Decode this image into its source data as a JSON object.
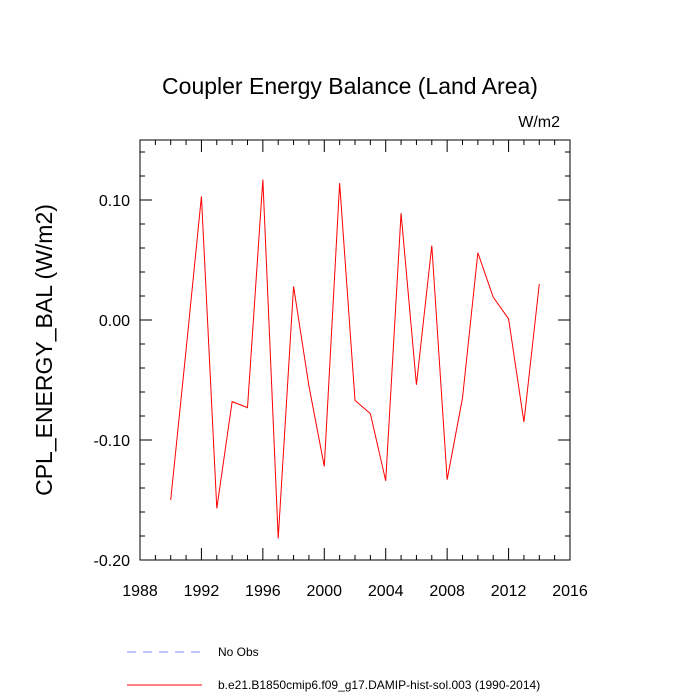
{
  "chart_data": {
    "type": "line",
    "title": "Coupler Energy Balance (Land Area)",
    "units": "W/m2",
    "ylabel": "CPL_ENERGY_BAL  (W/m2)",
    "xlabel": "",
    "xlim": [
      1988,
      2016
    ],
    "ylim": [
      -0.2,
      0.15
    ],
    "x_ticks": [
      1988,
      1992,
      1996,
      2000,
      2004,
      2008,
      2012,
      2016
    ],
    "x_tick_labels": [
      "1988",
      "1992",
      "1996",
      "2000",
      "2004",
      "2008",
      "2012",
      "2016"
    ],
    "y_ticks": [
      -0.2,
      -0.1,
      0.0,
      0.1
    ],
    "y_tick_labels": [
      "-0.20",
      "-0.10",
      "0.00",
      "0.10"
    ],
    "grid": false,
    "legend_position": "bottom",
    "series": [
      {
        "name": "b.e21.B1850cmip6.f09_g17.DAMIP-hist-sol.003 (1990-2014)",
        "color": "#ff0000",
        "style": "solid",
        "x": [
          1990,
          1991,
          1992,
          1993,
          1994,
          1995,
          1996,
          1997,
          1998,
          1999,
          2000,
          2001,
          2002,
          2003,
          2004,
          2005,
          2006,
          2007,
          2008,
          2009,
          2010,
          2011,
          2012,
          2013,
          2014
        ],
        "y": [
          -0.15,
          -0.025,
          0.103,
          -0.157,
          -0.068,
          -0.073,
          0.117,
          -0.182,
          0.028,
          -0.055,
          -0.122,
          0.114,
          -0.067,
          -0.078,
          -0.134,
          0.089,
          -0.054,
          0.062,
          -0.133,
          -0.065,
          0.056,
          0.019,
          0.001,
          -0.085,
          0.03
        ]
      }
    ],
    "legend": [
      {
        "label": "No Obs",
        "color": "#8a8aff",
        "style": "dashed"
      },
      {
        "label": "b.e21.B1850cmip6.f09_g17.DAMIP-hist-sol.003 (1990-2014)",
        "color": "#ff0000",
        "style": "solid"
      }
    ]
  }
}
